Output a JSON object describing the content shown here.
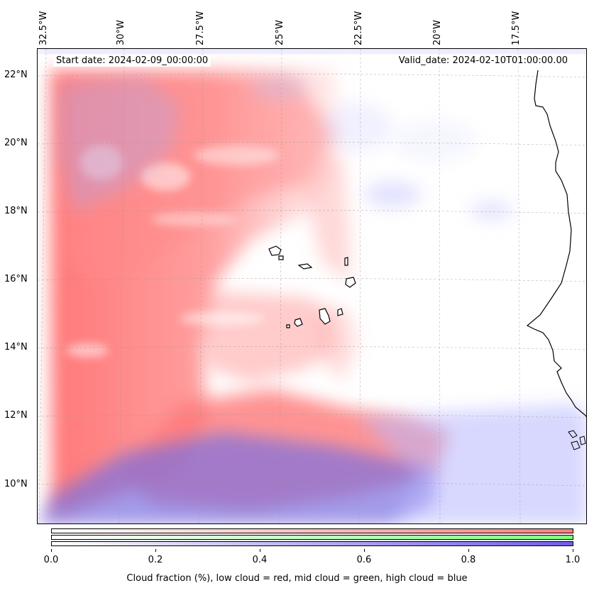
{
  "map": {
    "start_date_label": "Start date: 2024-02-09_00:00:00",
    "valid_date_label": "Valid_date: 2024-02-10T01:00:00.00",
    "longitude_labels": [
      "32.5°W",
      "30°W",
      "27.5°W",
      "25°W",
      "22.5°W",
      "20°W",
      "17.5°W"
    ],
    "latitude_labels": [
      "22°N",
      "20°N",
      "18°N",
      "16°N",
      "14°N",
      "12°N",
      "10°N"
    ],
    "layers": [
      {
        "name": "low cloud",
        "color": "#ff7f7f"
      },
      {
        "name": "mid cloud",
        "color": "#7fff7f"
      },
      {
        "name": "high cloud",
        "color": "#7f7fff"
      }
    ]
  },
  "colorbar": {
    "ticks": [
      "0.0",
      "0.2",
      "0.4",
      "0.6",
      "0.8",
      "1.0"
    ],
    "caption": "Cloud fraction (%), low cloud = red, mid cloud = green, high cloud = blue",
    "range": [
      0.0,
      1.0
    ]
  }
}
